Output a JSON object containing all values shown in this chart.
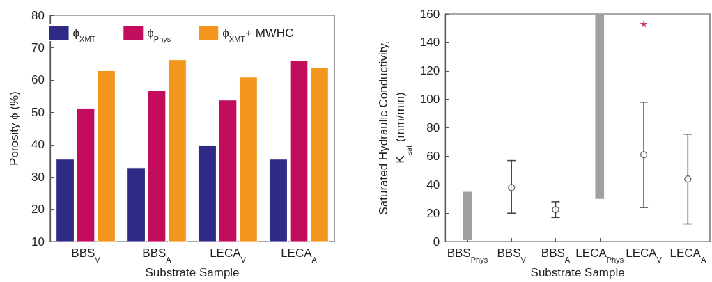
{
  "chart_data": [
    {
      "type": "bar",
      "xlabel": "Substrate Sample",
      "ylabel": "Porosity ϕ (%)",
      "categories": [
        "BBS$_{V}$",
        "BBS$_{A}$",
        "LECA$_{V}$",
        "LECA$_{A}$"
      ],
      "series": [
        {
          "name": "ϕ$_{XMT}$",
          "color": "#2e2a85",
          "values": [
            35.6,
            33.0,
            39.9,
            35.6
          ]
        },
        {
          "name": "ϕ$_{Phys}$",
          "color": "#c20c5e",
          "values": [
            51.3,
            56.8,
            53.9,
            66.1
          ]
        },
        {
          "name": "ϕ$_{XMT}$+ MWHC",
          "color": "#f2961e",
          "values": [
            63.0,
            66.4,
            61.0,
            63.9
          ]
        }
      ],
      "ylim": [
        10,
        80
      ],
      "yticks": [
        10,
        20,
        30,
        40,
        50,
        60,
        70,
        80
      ],
      "grid": false,
      "legend": "top"
    },
    {
      "type": "scatter",
      "xlabel": "Substrate Sample",
      "ylabel": "Saturated Hydraulic Conductivity,\nK$_{sat}$ (mm/min)",
      "categories": [
        "BBS$_{Phys}$",
        "BBS$_{V}$",
        "BBS$_{A}$",
        "LECA$_{Phys}$",
        "LECA$_{V}$",
        "LECA$_{A}$"
      ],
      "series": [
        {
          "type": "bar",
          "color": "#a0a0a0",
          "values": [
            34,
            null,
            null,
            130,
            null,
            null
          ],
          "base": [
            1,
            null,
            null,
            30,
            null,
            null
          ]
        },
        {
          "type": "scatter",
          "color": "#404040",
          "marker": "circle",
          "values": [
            null,
            38,
            22.5,
            null,
            61,
            44
          ],
          "errors": [
            null,
            [
              20,
              57
            ],
            [
              17,
              28
            ],
            null,
            [
              24,
              98
            ],
            [
              12.5,
              75.5
            ]
          ]
        },
        {
          "type": "scatter",
          "color": "#c20c5e",
          "marker": "star",
          "values": [
            null,
            null,
            null,
            null,
            153,
            null
          ]
        }
      ],
      "ylim": [
        0,
        160
      ],
      "yticks": [
        0,
        20,
        40,
        60,
        80,
        100,
        120,
        140,
        160
      ],
      "grid": false,
      "legend": false
    }
  ]
}
